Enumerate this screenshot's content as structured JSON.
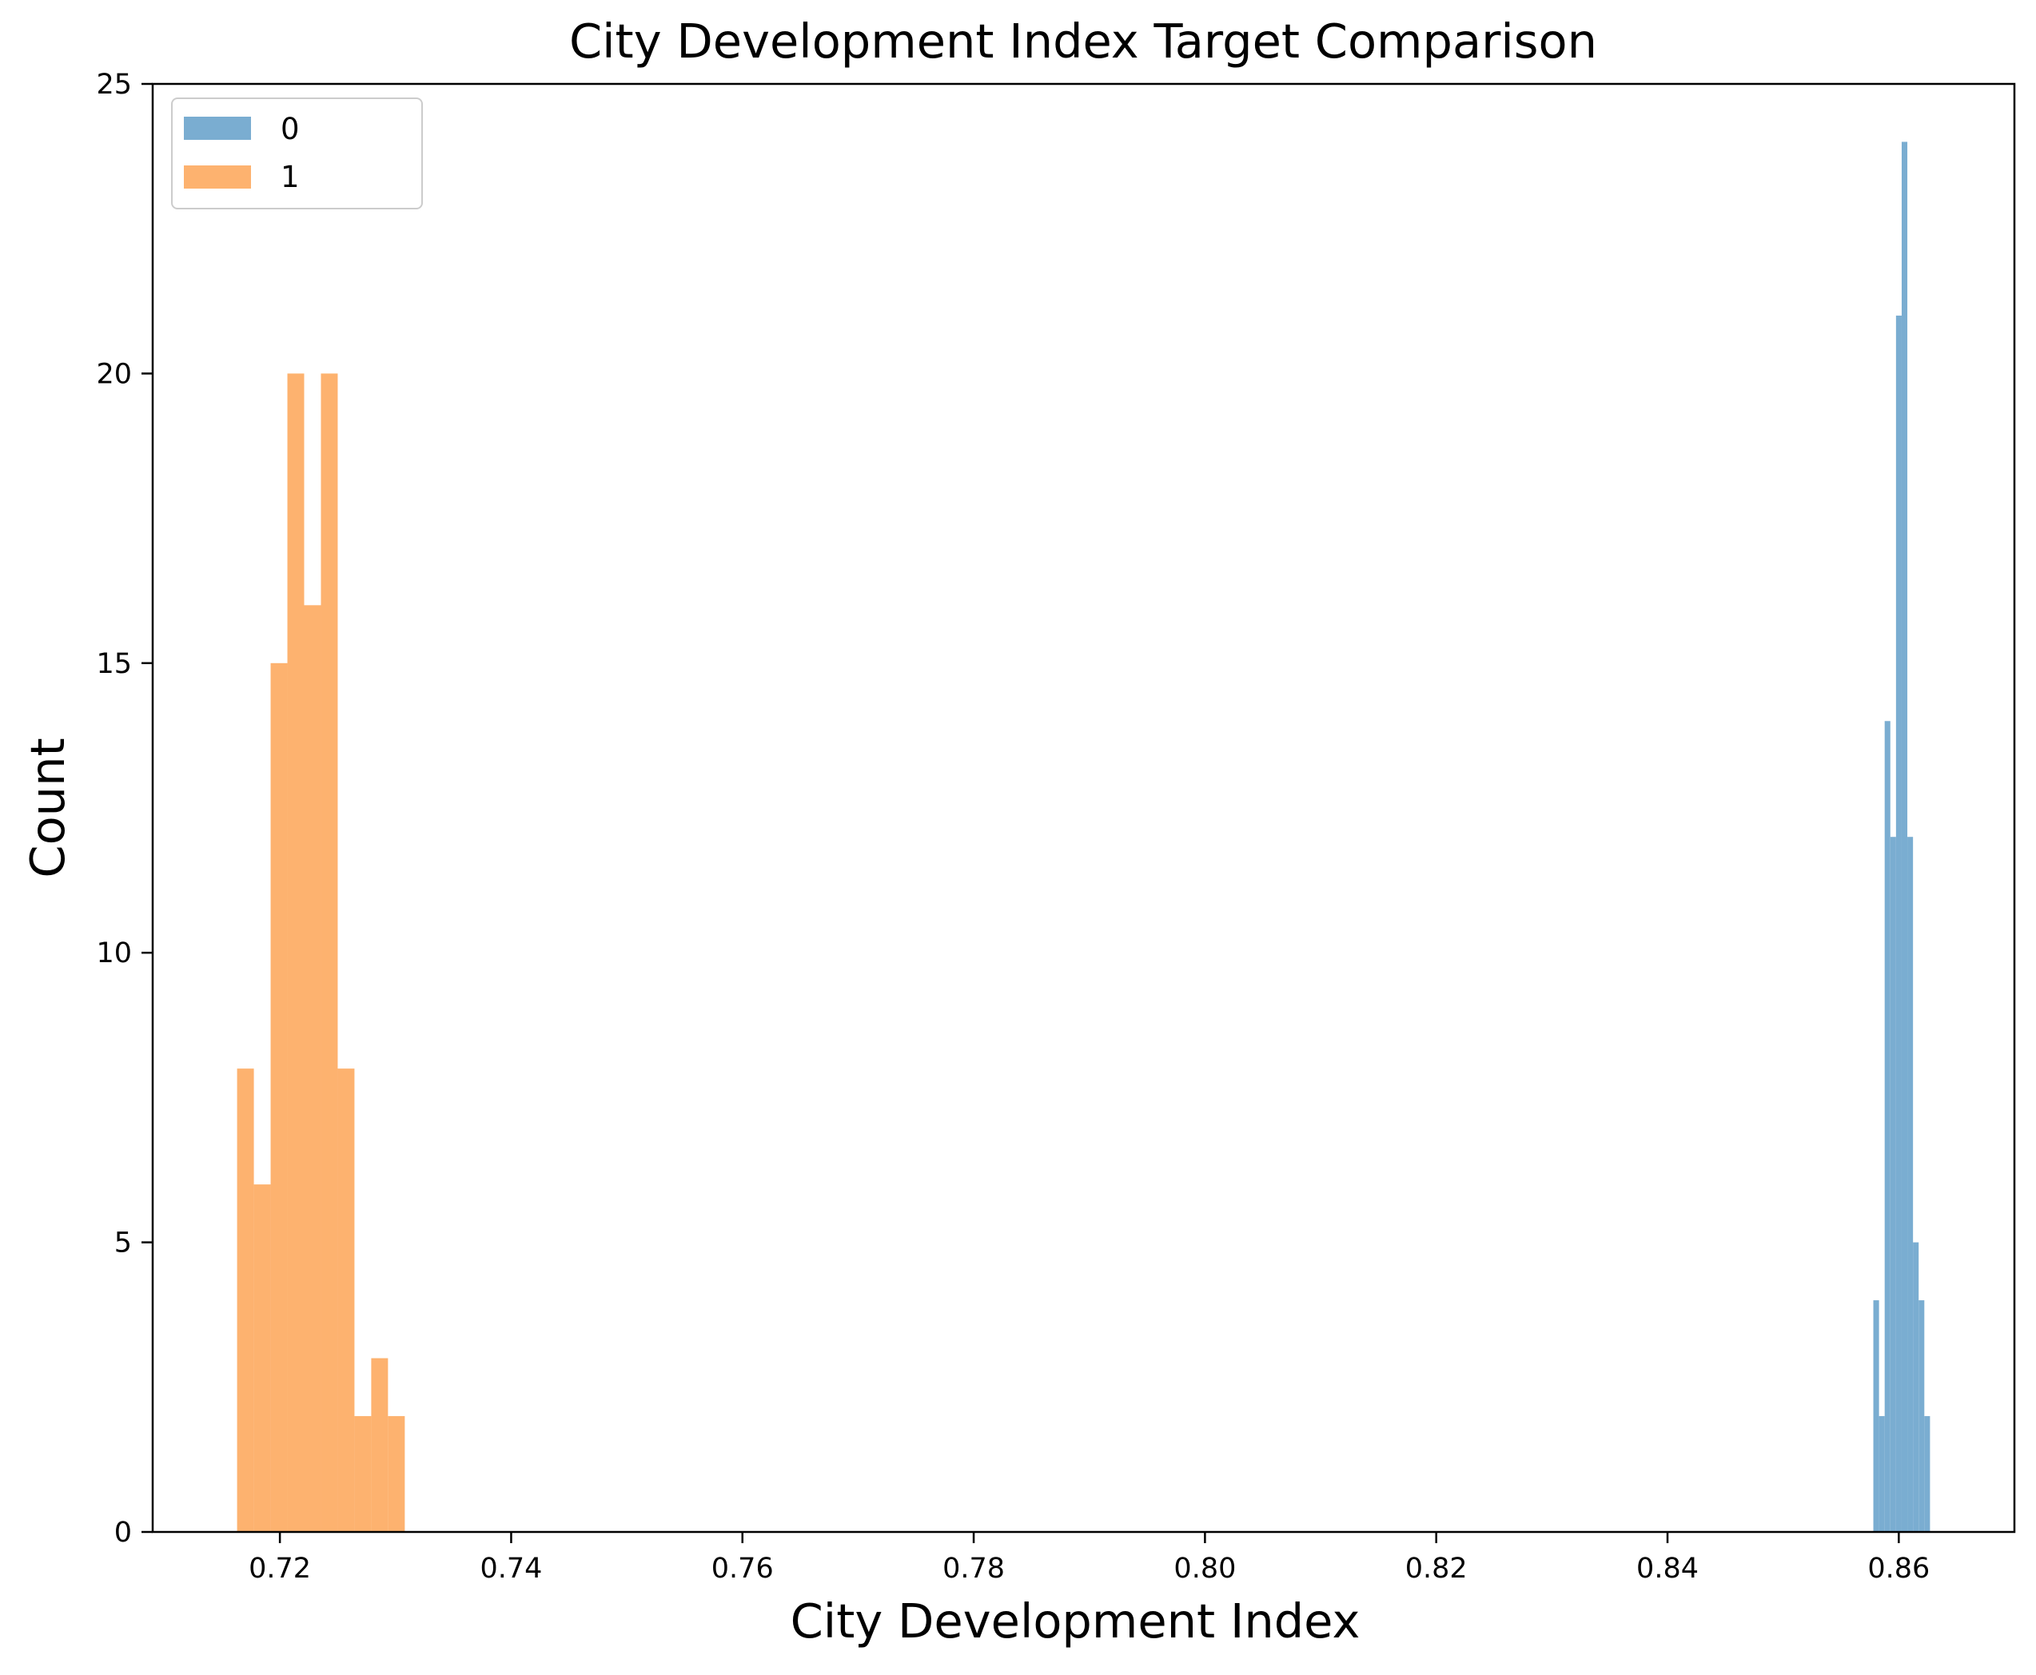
{
  "chart_data": {
    "type": "histogram",
    "title": "City Development Index Target Comparison",
    "xlabel": "City Development Index",
    "ylabel": "Count",
    "xlim": [
      0.709,
      0.87
    ],
    "ylim": [
      0,
      25
    ],
    "x_ticks": [
      {
        "value": 0.72,
        "label": "0.72"
      },
      {
        "value": 0.74,
        "label": "0.74"
      },
      {
        "value": 0.76,
        "label": "0.76"
      },
      {
        "value": 0.78,
        "label": "0.78"
      },
      {
        "value": 0.8,
        "label": "0.80"
      },
      {
        "value": 0.82,
        "label": "0.82"
      },
      {
        "value": 0.84,
        "label": "0.84"
      },
      {
        "value": 0.86,
        "label": "0.86"
      }
    ],
    "y_ticks": [
      {
        "value": 0,
        "label": "0"
      },
      {
        "value": 5,
        "label": "5"
      },
      {
        "value": 10,
        "label": "10"
      },
      {
        "value": 15,
        "label": "15"
      },
      {
        "value": 20,
        "label": "20"
      },
      {
        "value": 25,
        "label": "25"
      }
    ],
    "grid": false,
    "legend_position": "top-left",
    "series": [
      {
        "name": "0",
        "color": "#7aadd1",
        "bin_start": 0.8578,
        "bin_width": 0.00049,
        "counts": [
          4,
          2,
          14,
          12,
          21,
          24,
          12,
          5,
          4,
          2
        ]
      },
      {
        "name": "1",
        "color": "#fdb26f",
        "bin_start": 0.7163,
        "bin_width": 0.00145,
        "counts": [
          8,
          6,
          15,
          20,
          16,
          20,
          8,
          2,
          3,
          2
        ]
      }
    ]
  }
}
